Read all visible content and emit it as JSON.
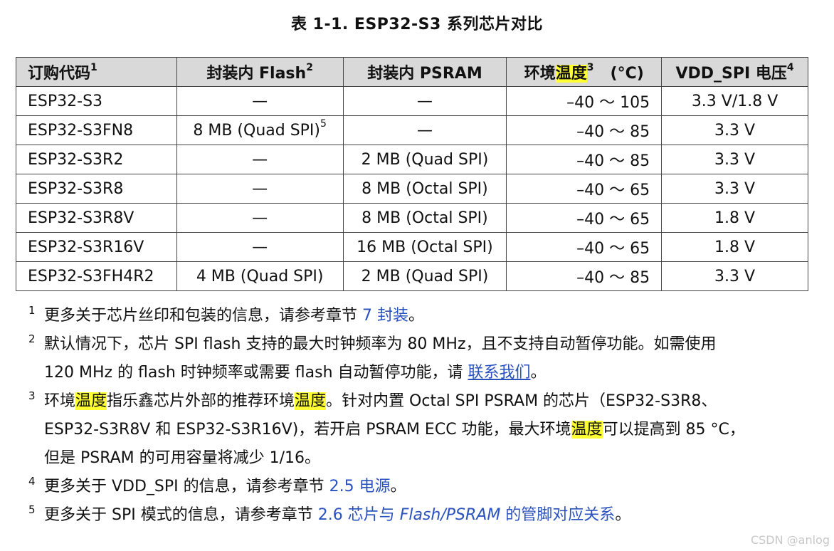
{
  "title": "表 1-1. ESP32-S3 系列芯片对比",
  "table": {
    "headers": {
      "code": "订购代码",
      "code_sup": "1",
      "flash": "封装内 Flash",
      "flash_sup": "2",
      "psram": "封装内 PSRAM",
      "temp_a": "环境",
      "temp_hl": "温度",
      "temp_sup": "3",
      "temp_unit": "(°C)",
      "vdd": "VDD_SPI 电压",
      "vdd_sup": "4"
    },
    "rows": [
      {
        "code": "ESP32-S3",
        "flash": "—",
        "flash_sup": "",
        "psram": "—",
        "temp": "–40 ～ 105",
        "vdd": "3.3 V/1.8 V"
      },
      {
        "code": "ESP32-S3FN8",
        "flash": "8 MB (Quad SPI)",
        "flash_sup": "5",
        "psram": "—",
        "temp": "–40 ～ 85",
        "vdd": "3.3 V"
      },
      {
        "code": "ESP32-S3R2",
        "flash": "—",
        "flash_sup": "",
        "psram": "2 MB (Quad SPI)",
        "temp": "–40 ～ 85",
        "vdd": "3.3 V"
      },
      {
        "code": "ESP32-S3R8",
        "flash": "—",
        "flash_sup": "",
        "psram": "8 MB (Octal SPI)",
        "temp": "–40 ～ 65",
        "vdd": "3.3 V"
      },
      {
        "code": "ESP32-S3R8V",
        "flash": "—",
        "flash_sup": "",
        "psram": "8 MB (Octal SPI)",
        "temp": "–40 ～ 65",
        "vdd": "1.8 V"
      },
      {
        "code": "ESP32-S3R16V",
        "flash": "—",
        "flash_sup": "",
        "psram": "16 MB (Octal SPI)",
        "temp": "–40 ～ 65",
        "vdd": "1.8 V"
      },
      {
        "code": "ESP32-S3FH4R2",
        "flash": "4 MB (Quad SPI)",
        "flash_sup": "",
        "psram": "2 MB (Quad SPI)",
        "temp": "–40 ～ 85",
        "vdd": "3.3 V"
      }
    ]
  },
  "notes": {
    "n1": {
      "num": "1",
      "text": "更多关于芯片丝印和包装的信息，请参考章节 ",
      "link": "7 封装",
      "end": "。"
    },
    "n2": {
      "num": "2",
      "line1": "默认情况下，芯片 SPI flash 支持的最大时钟频率为 80 MHz，且不支持自动暂停功能。如需使用",
      "line2": "120 MHz 的 flash 时钟频率或需要 flash 自动暂停功能，请 ",
      "link": "联系我们",
      "end": "。"
    },
    "n3": {
      "num": "3",
      "a1": "环境",
      "hl1": "温度",
      "a2": "指乐鑫芯片外部的推荐环境",
      "hl2": "温度",
      "a3": "。针对内置 Octal SPI PSRAM 的芯片（ESP32-S3R8、",
      "b1": "ESP32-S3R8V 和 ESP32-S3R16V)，若开启 PSRAM ECC 功能，最大环境",
      "hl3": "温度",
      "b2": "可以提高到 85 °C，",
      "c1": "但是 PSRAM 的可用容量将减少 1/16。"
    },
    "n4": {
      "num": "4",
      "text": "更多关于 VDD_SPI 的信息，请参考章节 ",
      "link": "2.5 电源",
      "end": "。"
    },
    "n5": {
      "num": "5",
      "text": "更多关于 SPI 模式的信息，请参考章节 ",
      "link_a": "2.6 芯片与 ",
      "link_it": "Flash/PSRAM",
      "link_b": " 的管脚对应关系",
      "end": "。"
    }
  },
  "watermark": "CSDN @anlog",
  "colors": {
    "link": "#2a52be",
    "highlight": "#ffff33",
    "header_bg": "#d9d9d9"
  }
}
